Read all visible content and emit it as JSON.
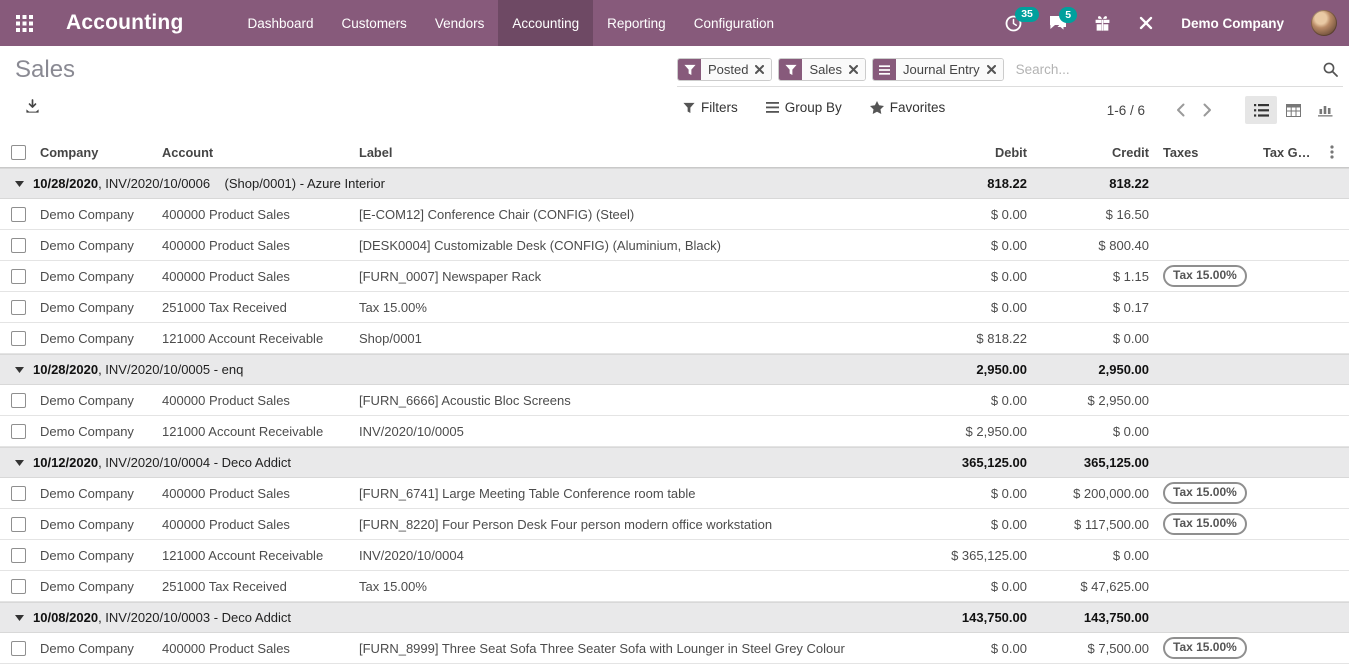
{
  "navbar": {
    "brand": "Accounting",
    "items": [
      {
        "label": "Dashboard",
        "active": false
      },
      {
        "label": "Customers",
        "active": false
      },
      {
        "label": "Vendors",
        "active": false
      },
      {
        "label": "Accounting",
        "active": true
      },
      {
        "label": "Reporting",
        "active": false
      },
      {
        "label": "Configuration",
        "active": false
      }
    ],
    "systray": {
      "activities_count": "35",
      "messages_count": "5",
      "company": "Demo Company"
    }
  },
  "page": {
    "title": "Sales"
  },
  "search": {
    "placeholder": "Search...",
    "facets": [
      {
        "icon": "filter",
        "label": "Posted"
      },
      {
        "icon": "filter",
        "label": "Sales"
      },
      {
        "icon": "group-by",
        "label": "Journal Entry"
      }
    ]
  },
  "control_panel": {
    "filters": "Filters",
    "group_by": "Group By",
    "favorites": "Favorites",
    "pager": "1-6 / 6"
  },
  "table": {
    "headers": {
      "company": "Company",
      "account": "Account",
      "label": "Label",
      "debit": "Debit",
      "credit": "Credit",
      "taxes": "Taxes",
      "tax_grids": "Tax Grids"
    },
    "groups": [
      {
        "date": "10/28/2020",
        "rest": ", INV/2020/10/0006    (Shop/0001) - Azure Interior",
        "debit": "818.22",
        "credit": "818.22",
        "rows": [
          {
            "company": "Demo Company",
            "account": "400000 Product Sales",
            "label": "[E-COM12] Conference Chair (CONFIG) (Steel)",
            "debit": "$ 0.00",
            "credit": "$ 16.50",
            "tax": ""
          },
          {
            "company": "Demo Company",
            "account": "400000 Product Sales",
            "label": "[DESK0004] Customizable Desk (CONFIG) (Aluminium, Black)",
            "debit": "$ 0.00",
            "credit": "$ 800.40",
            "tax": ""
          },
          {
            "company": "Demo Company",
            "account": "400000 Product Sales",
            "label": "[FURN_0007] Newspaper Rack",
            "debit": "$ 0.00",
            "credit": "$ 1.15",
            "tax": "Tax 15.00%"
          },
          {
            "company": "Demo Company",
            "account": "251000 Tax Received",
            "label": "Tax 15.00%",
            "debit": "$ 0.00",
            "credit": "$ 0.17",
            "tax": ""
          },
          {
            "company": "Demo Company",
            "account": "121000 Account Receivable",
            "label": "Shop/0001",
            "debit": "$ 818.22",
            "credit": "$ 0.00",
            "tax": ""
          }
        ]
      },
      {
        "date": "10/28/2020",
        "rest": ", INV/2020/10/0005 - enq",
        "debit": "2,950.00",
        "credit": "2,950.00",
        "rows": [
          {
            "company": "Demo Company",
            "account": "400000 Product Sales",
            "label": "[FURN_6666] Acoustic Bloc Screens",
            "debit": "$ 0.00",
            "credit": "$ 2,950.00",
            "tax": ""
          },
          {
            "company": "Demo Company",
            "account": "121000 Account Receivable",
            "label": "INV/2020/10/0005",
            "debit": "$ 2,950.00",
            "credit": "$ 0.00",
            "tax": ""
          }
        ]
      },
      {
        "date": "10/12/2020",
        "rest": ", INV/2020/10/0004 - Deco Addict",
        "debit": "365,125.00",
        "credit": "365,125.00",
        "rows": [
          {
            "company": "Demo Company",
            "account": "400000 Product Sales",
            "label": "[FURN_6741] Large Meeting Table Conference room table",
            "debit": "$ 0.00",
            "credit": "$ 200,000.00",
            "tax": "Tax 15.00%"
          },
          {
            "company": "Demo Company",
            "account": "400000 Product Sales",
            "label": "[FURN_8220] Four Person Desk Four person modern office workstation",
            "debit": "$ 0.00",
            "credit": "$ 117,500.00",
            "tax": "Tax 15.00%"
          },
          {
            "company": "Demo Company",
            "account": "121000 Account Receivable",
            "label": "INV/2020/10/0004",
            "debit": "$ 365,125.00",
            "credit": "$ 0.00",
            "tax": ""
          },
          {
            "company": "Demo Company",
            "account": "251000 Tax Received",
            "label": "Tax 15.00%",
            "debit": "$ 0.00",
            "credit": "$ 47,625.00",
            "tax": ""
          }
        ]
      },
      {
        "date": "10/08/2020",
        "rest": ", INV/2020/10/0003 - Deco Addict",
        "debit": "143,750.00",
        "credit": "143,750.00",
        "rows": [
          {
            "company": "Demo Company",
            "account": "400000 Product Sales",
            "label": "[FURN_8999] Three Seat Sofa Three Seater Sofa with Lounger in Steel Grey Colour",
            "debit": "$ 0.00",
            "credit": "$ 7,500.00",
            "tax": "Tax 15.00%"
          }
        ]
      }
    ]
  },
  "colors": {
    "brand": "#875A7B",
    "brand_active": "#6f4a65",
    "badge": "#00A09D",
    "group_row_bg": "#e9e9ea"
  }
}
